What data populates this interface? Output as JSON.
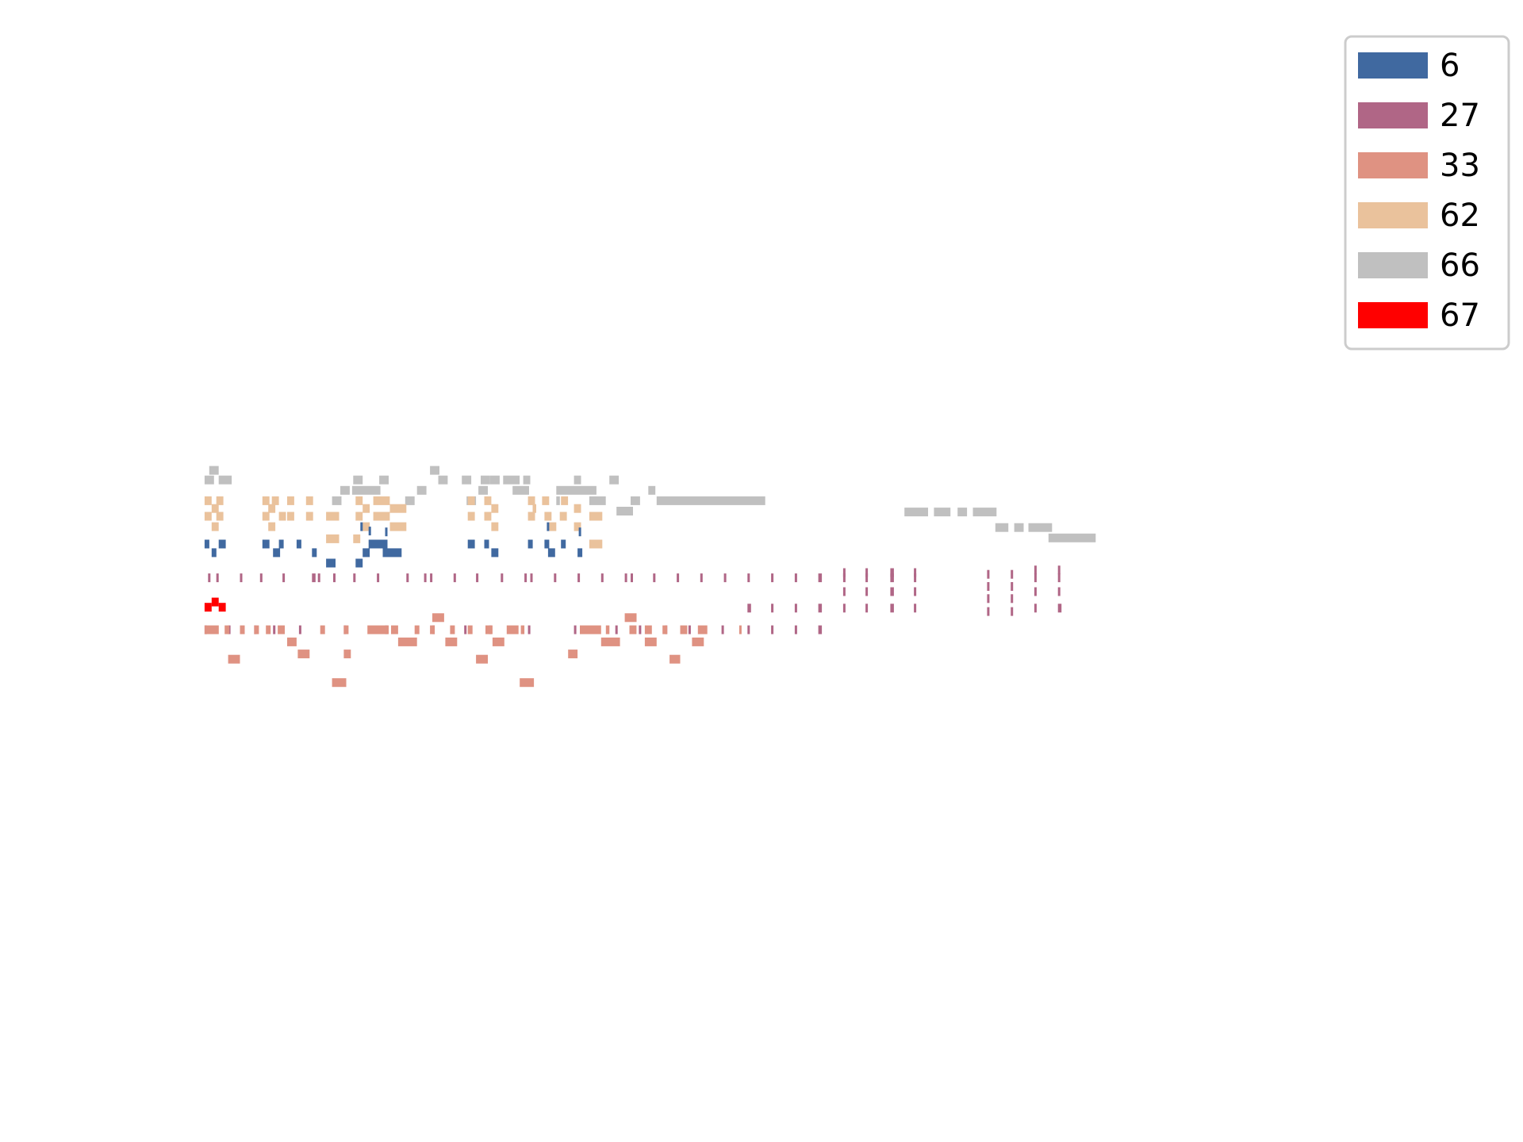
{
  "chart_data": {
    "type": "piano-roll",
    "title": "",
    "xlabel": "",
    "ylabel": "",
    "axes_visible": false,
    "grid": false,
    "legend_placement": "top-right",
    "legend": [
      {
        "label": "6",
        "color": "#4069a0"
      },
      {
        "label": "27",
        "color": "#b06686"
      },
      {
        "label": "33",
        "color": "#df9282"
      },
      {
        "label": "62",
        "color": "#eac29c"
      },
      {
        "label": "66",
        "color": "#c0c0c0"
      },
      {
        "label": "67",
        "color": "#ff0000"
      }
    ],
    "x_range": [
      0,
      100
    ],
    "y_range": [
      0,
      100
    ],
    "series": [
      {
        "legend_index": 4,
        "notes": [
          [
            1.2,
            60.7,
            0.8
          ],
          [
            1.6,
            61.8,
            0.8
          ],
          [
            2.4,
            60.7,
            1.1
          ],
          [
            13.8,
            60.7,
            0.8
          ],
          [
            16.0,
            60.7,
            0.8
          ],
          [
            20.3,
            61.8,
            0.8
          ],
          [
            21.0,
            60.7,
            0.8
          ],
          [
            23.0,
            60.7,
            0.8
          ],
          [
            24.6,
            60.7,
            0.8
          ],
          [
            25.4,
            60.7,
            0.8
          ],
          [
            26.5,
            60.7,
            1.4
          ],
          [
            28.2,
            60.7,
            0.6
          ],
          [
            32.5,
            60.7,
            0.6
          ],
          [
            35.5,
            60.7,
            0.8
          ],
          [
            12.7,
            59.5,
            0.8
          ],
          [
            13.7,
            59.5,
            2.4
          ],
          [
            19.2,
            59.5,
            0.8
          ],
          [
            24.4,
            59.5,
            0.8
          ],
          [
            27.3,
            59.5,
            1.4
          ],
          [
            31.0,
            59.5,
            3.4
          ],
          [
            38.8,
            59.5,
            0.6
          ],
          [
            12.0,
            58.3,
            0.8
          ],
          [
            18.2,
            58.3,
            0.8
          ],
          [
            23.4,
            58.3,
            0.8
          ],
          [
            31.0,
            58.3,
            0.3
          ],
          [
            33.8,
            58.3,
            1.4
          ],
          [
            37.3,
            58.3,
            0.8
          ],
          [
            39.5,
            58.3,
            9.2
          ],
          [
            36.1,
            57.1,
            1.4
          ],
          [
            60.5,
            57.0,
            2.0
          ],
          [
            63.0,
            57.0,
            1.4
          ],
          [
            65.0,
            57.0,
            0.8
          ],
          [
            66.3,
            57.0,
            2.0
          ],
          [
            68.2,
            55.2,
            1.1
          ],
          [
            69.8,
            55.2,
            0.8
          ],
          [
            71.0,
            55.2,
            2.0
          ],
          [
            72.7,
            54.0,
            4.0
          ]
        ]
      },
      {
        "legend_index": 3,
        "notes": [
          [
            1.2,
            58.3,
            0.6
          ],
          [
            2.2,
            58.3,
            0.6
          ],
          [
            6.1,
            58.3,
            0.6
          ],
          [
            6.9,
            58.3,
            0.6
          ],
          [
            8.2,
            58.3,
            0.6
          ],
          [
            9.8,
            58.3,
            0.6
          ],
          [
            14.0,
            58.3,
            0.6
          ],
          [
            15.5,
            58.3,
            1.4
          ],
          [
            23.5,
            58.3,
            0.6
          ],
          [
            24.9,
            58.3,
            0.6
          ],
          [
            28.6,
            58.3,
            0.6
          ],
          [
            29.8,
            58.3,
            0.6
          ],
          [
            31.4,
            58.3,
            0.6
          ],
          [
            1.8,
            57.4,
            0.6
          ],
          [
            6.6,
            57.4,
            0.6
          ],
          [
            14.6,
            57.4,
            0.6
          ],
          [
            16.9,
            57.4,
            1.4
          ],
          [
            25.5,
            57.4,
            0.6
          ],
          [
            29.0,
            57.4,
            0.3
          ],
          [
            32.5,
            57.4,
            0.6
          ],
          [
            1.2,
            56.5,
            0.6
          ],
          [
            2.2,
            56.5,
            0.6
          ],
          [
            6.1,
            56.5,
            0.6
          ],
          [
            7.5,
            56.5,
            0.6
          ],
          [
            8.2,
            56.5,
            0.6
          ],
          [
            9.8,
            56.5,
            0.6
          ],
          [
            11.5,
            56.5,
            1.1
          ],
          [
            14.0,
            56.5,
            0.6
          ],
          [
            15.5,
            56.5,
            1.4
          ],
          [
            23.5,
            56.5,
            0.6
          ],
          [
            24.9,
            56.5,
            0.6
          ],
          [
            28.6,
            56.5,
            0.6
          ],
          [
            30.0,
            56.5,
            0.6
          ],
          [
            31.3,
            56.5,
            0.6
          ],
          [
            33.8,
            56.5,
            1.1
          ],
          [
            1.8,
            55.3,
            0.6
          ],
          [
            6.6,
            55.3,
            0.6
          ],
          [
            14.6,
            55.3,
            0.6
          ],
          [
            16.9,
            55.3,
            1.4
          ],
          [
            25.5,
            55.3,
            0.6
          ],
          [
            30.4,
            55.3,
            0.6
          ],
          [
            32.5,
            55.3,
            0.6
          ],
          [
            11.5,
            53.9,
            1.1
          ],
          [
            13.8,
            53.9,
            0.6
          ],
          [
            33.8,
            53.3,
            1.1
          ]
        ]
      },
      {
        "legend_index": 0,
        "notes": [
          [
            1.2,
            53.3,
            0.4
          ],
          [
            2.4,
            53.3,
            0.6
          ],
          [
            6.1,
            53.3,
            0.6
          ],
          [
            7.5,
            53.3,
            0.4
          ],
          [
            9.0,
            53.3,
            0.4
          ],
          [
            15.1,
            53.3,
            1.6
          ],
          [
            23.5,
            53.3,
            0.6
          ],
          [
            24.9,
            53.3,
            0.4
          ],
          [
            28.6,
            53.3,
            0.4
          ],
          [
            30.0,
            53.3,
            0.4
          ],
          [
            31.4,
            53.3,
            0.4
          ],
          [
            1.8,
            52.3,
            0.4
          ],
          [
            7.0,
            52.3,
            0.6
          ],
          [
            10.3,
            52.3,
            0.4
          ],
          [
            14.6,
            52.3,
            0.6
          ],
          [
            16.3,
            52.3,
            1.6
          ],
          [
            25.5,
            52.3,
            0.6
          ],
          [
            30.3,
            52.3,
            0.6
          ],
          [
            32.8,
            52.3,
            0.4
          ],
          [
            11.5,
            51.1,
            0.8
          ],
          [
            14.0,
            51.1,
            0.6
          ],
          [
            14.4,
            55.3,
            0.2
          ],
          [
            15.1,
            54.8,
            0.2
          ],
          [
            16.5,
            54.7,
            0.2
          ],
          [
            32.9,
            54.7,
            0.2
          ],
          [
            30.2,
            55.3,
            0.2
          ]
        ]
      },
      {
        "legend_index": 1,
        "notes": [
          [
            1.5,
            49.4,
            0.2
          ],
          [
            2.2,
            49.4,
            0.2
          ],
          [
            4.2,
            49.4,
            0.1
          ],
          [
            5.9,
            49.4,
            0.2
          ],
          [
            7.8,
            49.4,
            0.2
          ],
          [
            10.3,
            49.4,
            0.3
          ],
          [
            10.8,
            49.4,
            0.2
          ],
          [
            12.1,
            49.4,
            0.1
          ],
          [
            13.8,
            49.4,
            0.2
          ],
          [
            15.8,
            49.4,
            0.2
          ],
          [
            18.3,
            49.4,
            0.2
          ],
          [
            19.8,
            49.4,
            0.2
          ],
          [
            20.3,
            49.4,
            0.2
          ],
          [
            22.3,
            49.4,
            0.1
          ],
          [
            24.2,
            49.4,
            0.1
          ],
          [
            26.3,
            49.4,
            0.1
          ],
          [
            28.3,
            49.4,
            0.2
          ],
          [
            28.8,
            49.4,
            0.2
          ],
          [
            30.8,
            49.4,
            0.2
          ],
          [
            32.8,
            49.4,
            0.2
          ],
          [
            34.8,
            49.4,
            0.2
          ],
          [
            36.8,
            49.4,
            0.2
          ],
          [
            37.3,
            49.4,
            0.2
          ],
          [
            39.2,
            49.4,
            0.2
          ],
          [
            41.2,
            49.4,
            0.2
          ],
          [
            43.2,
            49.4,
            0.2
          ],
          [
            45.2,
            49.4,
            0.2
          ],
          [
            47.2,
            49.4,
            0.2
          ],
          [
            49.2,
            49.4,
            0.2
          ],
          [
            51.2,
            49.4,
            0.2
          ],
          [
            53.2,
            49.4,
            0.3
          ],
          [
            55.3,
            50.0,
            0.2
          ],
          [
            57.2,
            50.0,
            0.2
          ],
          [
            59.3,
            50.0,
            0.3
          ],
          [
            61.3,
            50.0,
            0.2
          ],
          [
            55.3,
            49.4,
            0.2
          ],
          [
            57.2,
            49.4,
            0.2
          ],
          [
            59.3,
            49.4,
            0.3
          ],
          [
            61.3,
            49.4,
            0.2
          ],
          [
            55.3,
            47.8,
            0.2
          ],
          [
            57.2,
            47.8,
            0.2
          ],
          [
            59.3,
            47.8,
            0.3
          ],
          [
            61.3,
            47.8,
            0.2
          ],
          [
            55.3,
            45.9,
            0.2
          ],
          [
            57.2,
            45.9,
            0.2
          ],
          [
            59.3,
            45.9,
            0.3
          ],
          [
            61.3,
            45.9,
            0.2
          ],
          [
            47.2,
            45.9,
            0.3
          ],
          [
            49.2,
            45.9,
            0.2
          ],
          [
            51.2,
            45.9,
            0.2
          ],
          [
            53.2,
            45.9,
            0.3
          ],
          [
            47.2,
            43.4,
            0.2
          ],
          [
            49.2,
            43.4,
            0.1
          ],
          [
            51.2,
            43.4,
            0.2
          ],
          [
            53.2,
            43.4,
            0.3
          ],
          [
            67.5,
            49.8,
            0.1
          ],
          [
            69.5,
            49.8,
            0.1
          ],
          [
            67.5,
            48.4,
            0.1
          ],
          [
            69.5,
            48.4,
            0.1
          ],
          [
            67.5,
            47.0,
            0.1
          ],
          [
            69.5,
            47.0,
            0.1
          ],
          [
            67.5,
            45.5,
            0.1
          ],
          [
            69.5,
            45.5,
            0.1
          ],
          [
            71.5,
            50.3,
            0.2
          ],
          [
            73.5,
            50.3,
            0.2
          ],
          [
            71.5,
            49.4,
            0.2
          ],
          [
            73.5,
            49.4,
            0.2
          ],
          [
            71.5,
            47.8,
            0.2
          ],
          [
            73.5,
            47.8,
            0.2
          ],
          [
            71.5,
            45.9,
            0.2
          ],
          [
            73.5,
            45.9,
            0.3
          ],
          [
            1.2,
            43.4,
            0.1
          ],
          [
            3.2,
            43.4,
            0.1
          ],
          [
            5.4,
            43.4,
            0.2
          ],
          [
            7.0,
            43.4,
            0.1
          ],
          [
            9.2,
            43.4,
            0.2
          ],
          [
            13.0,
            43.4,
            0.2
          ],
          [
            16.5,
            43.4,
            0.1
          ],
          [
            20.5,
            43.4,
            0.2
          ],
          [
            23.2,
            43.4,
            0.2
          ],
          [
            25.3,
            43.4,
            0.2
          ],
          [
            28.6,
            43.4,
            0.1
          ],
          [
            32.5,
            43.4,
            0.2
          ],
          [
            36.0,
            43.4,
            0.1
          ],
          [
            38.0,
            43.4,
            0.2
          ],
          [
            40.2,
            43.4,
            0.1
          ],
          [
            42.2,
            43.4,
            0.1
          ],
          [
            45.0,
            43.4,
            0.2
          ]
        ]
      },
      {
        "legend_index": 2,
        "notes": [
          [
            20.5,
            44.8,
            1.0
          ],
          [
            36.8,
            44.8,
            1.0
          ],
          [
            1.2,
            43.4,
            1.2
          ],
          [
            2.9,
            43.4,
            0.4
          ],
          [
            4.2,
            43.4,
            0.4
          ],
          [
            5.4,
            43.4,
            0.4
          ],
          [
            6.4,
            43.4,
            0.4
          ],
          [
            7.4,
            43.4,
            0.6
          ],
          [
            11.0,
            43.4,
            0.4
          ],
          [
            13.0,
            43.4,
            0.4
          ],
          [
            15.0,
            43.4,
            1.8
          ],
          [
            17.0,
            43.4,
            0.6
          ],
          [
            19.0,
            43.4,
            0.4
          ],
          [
            20.3,
            43.4,
            0.4
          ],
          [
            22.0,
            43.4,
            0.4
          ],
          [
            23.5,
            43.4,
            0.4
          ],
          [
            25.0,
            43.4,
            0.6
          ],
          [
            26.8,
            43.4,
            1.0
          ],
          [
            28.0,
            43.4,
            0.3
          ],
          [
            33.0,
            43.4,
            1.8
          ],
          [
            35.2,
            43.4,
            0.3
          ],
          [
            37.2,
            43.4,
            0.6
          ],
          [
            38.5,
            43.4,
            0.6
          ],
          [
            40.0,
            43.4,
            0.4
          ],
          [
            41.5,
            43.4,
            0.6
          ],
          [
            43.0,
            43.4,
            0.8
          ],
          [
            46.5,
            43.4,
            0.2
          ],
          [
            8.2,
            42.0,
            0.8
          ],
          [
            17.6,
            42.0,
            1.6
          ],
          [
            21.6,
            42.0,
            1.0
          ],
          [
            25.6,
            42.0,
            1.0
          ],
          [
            34.8,
            42.0,
            1.6
          ],
          [
            38.5,
            42.0,
            1.0
          ],
          [
            42.5,
            42.0,
            1.0
          ],
          [
            9.1,
            40.6,
            1.0
          ],
          [
            13.0,
            40.6,
            0.6
          ],
          [
            32.0,
            40.6,
            0.8
          ],
          [
            3.2,
            40.0,
            1.0
          ],
          [
            24.2,
            40.0,
            1.0
          ],
          [
            40.6,
            40.0,
            0.9
          ],
          [
            12.0,
            37.3,
            1.2
          ],
          [
            27.9,
            37.3,
            1.2
          ]
        ]
      },
      {
        "legend_index": 5,
        "notes": [
          [
            1.2,
            46.0,
            0.6
          ],
          [
            1.8,
            46.6,
            0.6
          ],
          [
            2.4,
            46.0,
            0.6
          ]
        ]
      }
    ]
  }
}
